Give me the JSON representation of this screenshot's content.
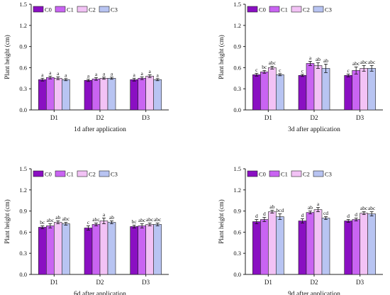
{
  "legend_labels": [
    "C0",
    "C1",
    "C2",
    "C3"
  ],
  "colors": {
    "C0": "#8a0fc2",
    "C1": "#c964f2",
    "C2": "#f2c2f5",
    "C3": "#b8c4f2",
    "axis": "#222222",
    "error": "#111111"
  },
  "chart_data": [
    {
      "type": "bar",
      "title": "",
      "xlabel": "1d after application",
      "ylabel": "Plant height (cm)",
      "ylim": [
        0,
        1.5
      ],
      "yticks": [
        "0.0",
        "0.3",
        "0.6",
        "0.9",
        "1.2",
        "1.5"
      ],
      "categories": [
        "D1",
        "D2",
        "D3"
      ],
      "legend_position": "top-left",
      "series": [
        {
          "name": "C0",
          "values": [
            0.43,
            0.42,
            0.43
          ],
          "errors": [
            0.02,
            0.015,
            0.02
          ],
          "letters": [
            "a",
            "a",
            "a"
          ]
        },
        {
          "name": "C1",
          "values": [
            0.46,
            0.44,
            0.45
          ],
          "errors": [
            0.02,
            0.02,
            0.02
          ],
          "letters": [
            "a",
            "a",
            "a"
          ]
        },
        {
          "name": "C2",
          "values": [
            0.45,
            0.45,
            0.48
          ],
          "errors": [
            0.02,
            0.015,
            0.02
          ],
          "letters": [
            "a",
            "a",
            "a"
          ]
        },
        {
          "name": "C3",
          "values": [
            0.43,
            0.45,
            0.43
          ],
          "errors": [
            0.015,
            0.015,
            0.015
          ],
          "letters": [
            "a",
            "a",
            "a"
          ]
        }
      ]
    },
    {
      "type": "bar",
      "title": "",
      "xlabel": "3d after application",
      "ylabel": "Plant height (cm)",
      "ylim": [
        0,
        1.5
      ],
      "yticks": [
        "0.0",
        "0.3",
        "0.6",
        "0.9",
        "1.2",
        "1.5"
      ],
      "categories": [
        "D1",
        "D2",
        "D3"
      ],
      "legend_position": "top-left",
      "series": [
        {
          "name": "C0",
          "values": [
            0.5,
            0.49,
            0.49
          ],
          "errors": [
            0.02,
            0.015,
            0.02
          ],
          "letters": [
            "c",
            "c",
            "c"
          ]
        },
        {
          "name": "C1",
          "values": [
            0.54,
            0.66,
            0.56
          ],
          "errors": [
            0.02,
            0.03,
            0.05
          ],
          "letters": [
            "bc",
            "a",
            "abc"
          ]
        },
        {
          "name": "C2",
          "values": [
            0.6,
            0.63,
            0.59
          ],
          "errors": [
            0.02,
            0.04,
            0.04
          ],
          "letters": [
            "abc",
            "ab",
            "abc"
          ]
        },
        {
          "name": "C3",
          "values": [
            0.5,
            0.59,
            0.59
          ],
          "errors": [
            0.015,
            0.06,
            0.04
          ],
          "letters": [
            "c",
            "ab",
            "abc"
          ]
        }
      ]
    },
    {
      "type": "bar",
      "title": "",
      "xlabel": "6d after application",
      "ylabel": "Plant height (cm)",
      "ylim": [
        0,
        1.5
      ],
      "yticks": [
        "0.0",
        "0.3",
        "0.6",
        "0.9",
        "1.2",
        "1.5"
      ],
      "categories": [
        "D1",
        "D2",
        "D3"
      ],
      "legend_position": "top-left",
      "series": [
        {
          "name": "C0",
          "values": [
            0.67,
            0.66,
            0.68
          ],
          "errors": [
            0.02,
            0.03,
            0.02
          ],
          "letters": [
            "bc",
            "c",
            "bc"
          ]
        },
        {
          "name": "C1",
          "values": [
            0.69,
            0.71,
            0.69
          ],
          "errors": [
            0.03,
            0.02,
            0.03
          ],
          "letters": [
            "abc",
            "abc",
            "abc"
          ]
        },
        {
          "name": "C2",
          "values": [
            0.74,
            0.76,
            0.71
          ],
          "errors": [
            0.02,
            0.04,
            0.02
          ],
          "letters": [
            "ab",
            "a",
            "abc"
          ]
        },
        {
          "name": "C3",
          "values": [
            0.72,
            0.74,
            0.71
          ],
          "errors": [
            0.02,
            0.02,
            0.02
          ],
          "letters": [
            "abc",
            "ab",
            "abc"
          ]
        }
      ]
    },
    {
      "type": "bar",
      "title": "",
      "xlabel": "9d after application",
      "ylabel": "Plant height (cm)",
      "ylim": [
        0,
        1.5
      ],
      "yticks": [
        "0.0",
        "0.3",
        "0.6",
        "0.9",
        "1.2",
        "1.5"
      ],
      "categories": [
        "D1",
        "D2",
        "D3"
      ],
      "legend_position": "top-left",
      "series": [
        {
          "name": "C0",
          "values": [
            0.75,
            0.76,
            0.76
          ],
          "errors": [
            0.03,
            0.03,
            0.02
          ],
          "letters": [
            "d",
            "d",
            "d"
          ]
        },
        {
          "name": "C1",
          "values": [
            0.78,
            0.88,
            0.78
          ],
          "errors": [
            0.03,
            0.02,
            0.02
          ],
          "letters": [
            "d",
            "ab",
            "d"
          ]
        },
        {
          "name": "C2",
          "values": [
            0.89,
            0.92,
            0.87
          ],
          "errors": [
            0.02,
            0.03,
            0.02
          ],
          "letters": [
            "ab",
            "a",
            "abc"
          ]
        },
        {
          "name": "C3",
          "values": [
            0.82,
            0.8,
            0.86
          ],
          "errors": [
            0.04,
            0.02,
            0.03
          ],
          "letters": [
            "bcd",
            "cd",
            "abc"
          ]
        }
      ]
    }
  ]
}
